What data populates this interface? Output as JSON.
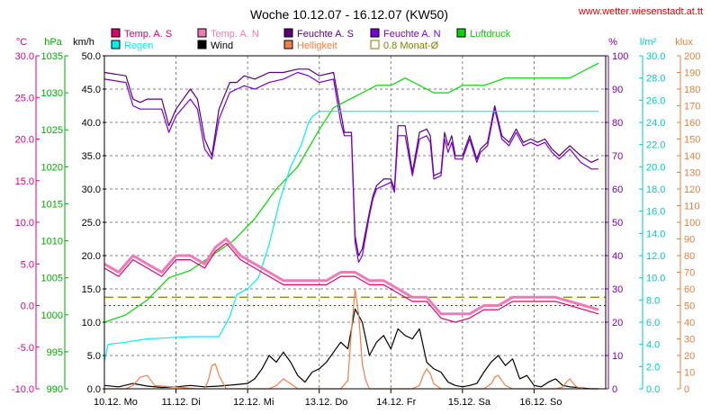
{
  "chart_data": {
    "type": "line",
    "title": "Woche 10.12.07 - 16.12.07 (KW50)",
    "source_url": "www.wetter.wiesenstadt.at.tt",
    "axes": {
      "celsius": {
        "unit": "°C",
        "color": "#e0007a",
        "range": [
          -10,
          30
        ],
        "ticks": [
          "30.0",
          "25.0",
          "20.0",
          "15.0",
          "10.0",
          "5.0",
          "0.0",
          "-5.0",
          "-10.0"
        ]
      },
      "hpa": {
        "unit": "hPa",
        "color": "#00aa00",
        "range": [
          990,
          1035
        ],
        "ticks": [
          "1035",
          "1030",
          "1025",
          "1020",
          "1015",
          "1010",
          "1005",
          "1000",
          "995",
          "990"
        ]
      },
      "kmh": {
        "unit": "km/h",
        "color": "#000000",
        "range": [
          0,
          50
        ],
        "ticks": [
          "50.0",
          "45.0",
          "40.0",
          "35.0",
          "30.0",
          "25.0",
          "20.0",
          "15.0",
          "10.0",
          "5.0",
          "0.0"
        ]
      },
      "percent": {
        "unit": "%",
        "color": "#7a00a0",
        "range": [
          0,
          100
        ],
        "ticks": [
          "100",
          "90",
          "80",
          "70",
          "60",
          "50",
          "40",
          "30",
          "20",
          "10",
          "0"
        ]
      },
      "lm2": {
        "unit": "l/m²",
        "color": "#00c8c8",
        "range": [
          0,
          30
        ],
        "ticks": [
          "30.0",
          "28.0",
          "26.0",
          "24.0",
          "22.0",
          "20.0",
          "18.0",
          "16.0",
          "14.0",
          "12.0",
          "10.0",
          "8.0",
          "6.0",
          "4.0",
          "2.0",
          "0.0"
        ]
      },
      "klux": {
        "unit": "klux",
        "color": "#e08040",
        "range": [
          0,
          200
        ],
        "ticks": [
          "200",
          "190",
          "180",
          "170",
          "160",
          "150",
          "140",
          "130",
          "120",
          "110",
          "100",
          "90",
          "80",
          "70",
          "60",
          "50",
          "40",
          "30",
          "20",
          "10",
          "0"
        ]
      }
    },
    "x_labels": [
      "10.12. Mo",
      "11.12. Di",
      "12.12. Mi",
      "13.12. Do",
      "14.12. Fr",
      "15.12. Sa",
      "16.12. So"
    ],
    "x_range": [
      0,
      7
    ],
    "grid": true,
    "legend": [
      {
        "name": "Temp. A. S",
        "color": "#e0006a"
      },
      {
        "name": "Temp. A. N",
        "color": "#f07ab8"
      },
      {
        "name": "Feuchte A. S",
        "color": "#5a0078"
      },
      {
        "name": "Feuchte A. N",
        "color": "#7800d8"
      },
      {
        "name": "Luftdruck",
        "color": "#00d800"
      },
      {
        "name": "Regen",
        "color": "#00f0f0"
      },
      {
        "name": "Wind",
        "color": "#000000"
      },
      {
        "name": "Helligkeit",
        "color": "#f08048"
      },
      {
        "name": "0.8 Monat-Ø",
        "color": "#808000"
      }
    ],
    "reference_lines": [
      {
        "name": "0.8 Monat-Ø",
        "axis": "celsius",
        "value": 1.0,
        "color": "#808000",
        "style": "dashed"
      },
      {
        "name": "zero",
        "axis": "celsius",
        "value": 0.0,
        "color": "#e00000",
        "style": "dotted"
      }
    ],
    "series": [
      {
        "name": "Feuchte A. S",
        "axis": "percent",
        "color": "#5a0078",
        "x": [
          0,
          0.3,
          0.4,
          0.5,
          0.6,
          0.8,
          0.9,
          1.0,
          1.2,
          1.3,
          1.4,
          1.5,
          1.6,
          1.75,
          1.85,
          1.95,
          2.1,
          2.2,
          2.3,
          2.5,
          2.7,
          2.85,
          3.0,
          3.2,
          3.3,
          3.35,
          3.45,
          3.5,
          3.55,
          3.6,
          3.7,
          3.75,
          3.8,
          3.9,
          4.0,
          4.05,
          4.1,
          4.2,
          4.3,
          4.4,
          4.5,
          4.55,
          4.6,
          4.7,
          4.75,
          4.8,
          4.85,
          4.9,
          5.0,
          5.1,
          5.2,
          5.25,
          5.35,
          5.45,
          5.55,
          5.65,
          5.75,
          5.85,
          5.95,
          6.05,
          6.15,
          6.25,
          6.35,
          6.5,
          6.65,
          6.8,
          6.9
        ],
        "y": [
          95,
          94,
          87,
          86,
          87,
          87,
          79,
          84,
          90,
          87,
          75,
          70,
          84,
          92,
          92,
          94,
          93,
          94,
          95,
          95,
          96,
          96,
          94,
          95,
          83,
          77,
          77,
          46,
          40,
          42,
          53,
          58,
          61,
          63,
          63,
          60,
          79,
          79,
          65,
          77,
          78,
          76,
          64,
          65,
          77,
          73,
          76,
          70,
          70,
          76,
          69,
          72,
          74,
          85,
          76,
          74,
          78,
          74,
          75,
          74,
          75,
          72,
          70,
          73,
          70,
          68,
          69
        ]
      },
      {
        "name": "Feuchte A. N",
        "axis": "percent",
        "color": "#7800d8",
        "x": [
          0,
          0.3,
          0.4,
          0.5,
          0.6,
          0.8,
          0.9,
          1.0,
          1.2,
          1.3,
          1.4,
          1.5,
          1.6,
          1.75,
          1.85,
          1.95,
          2.1,
          2.2,
          2.3,
          2.5,
          2.7,
          2.85,
          3.0,
          3.2,
          3.3,
          3.35,
          3.45,
          3.5,
          3.55,
          3.6,
          3.7,
          3.75,
          3.8,
          3.9,
          4.0,
          4.05,
          4.1,
          4.2,
          4.3,
          4.4,
          4.5,
          4.55,
          4.6,
          4.7,
          4.75,
          4.8,
          4.85,
          4.9,
          5.0,
          5.1,
          5.2,
          5.25,
          5.35,
          5.45,
          5.55,
          5.65,
          5.75,
          5.85,
          5.95,
          6.05,
          6.15,
          6.25,
          6.35,
          6.5,
          6.65,
          6.8,
          6.9
        ],
        "y": [
          93,
          92,
          85,
          84,
          84,
          84,
          77,
          82,
          87,
          84,
          72,
          69,
          81,
          89,
          90,
          91,
          90,
          91,
          92,
          93,
          95,
          94,
          92,
          93,
          80,
          76,
          76,
          44,
          38,
          40,
          52,
          57,
          60,
          61,
          62,
          59,
          76,
          76,
          64,
          75,
          76,
          74,
          63,
          64,
          75,
          71,
          74,
          69,
          69,
          75,
          68,
          71,
          73,
          84,
          75,
          73,
          77,
          73,
          74,
          73,
          74,
          71,
          69,
          72,
          68,
          66,
          66
        ]
      },
      {
        "name": "Luftdruck",
        "axis": "hpa",
        "color": "#00d800",
        "x": [
          0,
          0.3,
          0.6,
          0.9,
          1.2,
          1.5,
          1.8,
          2.1,
          2.4,
          2.7,
          3.0,
          3.2,
          3.4,
          3.6,
          3.8,
          4.0,
          4.2,
          4.4,
          4.6,
          4.8,
          5.0,
          5.3,
          5.6,
          5.9,
          6.2,
          6.5,
          6.7,
          6.9
        ],
        "y": [
          999,
          1000,
          1002,
          1005,
          1006,
          1008,
          1010,
          1013,
          1017,
          1020,
          1025,
          1028,
          1029,
          1030,
          1031,
          1031,
          1032,
          1031,
          1030,
          1030,
          1031,
          1031,
          1032,
          1032,
          1032,
          1032,
          1033,
          1034
        ]
      },
      {
        "name": "Regen",
        "axis": "lm2",
        "color": "#00f0f0",
        "x": [
          0,
          0.05,
          0.3,
          0.6,
          0.9,
          1.2,
          1.5,
          1.6,
          1.75,
          1.85,
          2.0,
          2.15,
          2.3,
          2.45,
          2.6,
          2.75,
          2.85,
          2.9,
          3.0,
          3.1,
          3.2,
          3.5,
          4.0,
          4.5,
          5.0,
          5.5,
          6.0,
          6.5,
          6.9
        ],
        "y": [
          2.5,
          4.0,
          4.2,
          4.5,
          4.6,
          4.7,
          4.7,
          4.7,
          6.5,
          8.5,
          9.0,
          10.0,
          13.0,
          17.0,
          20.0,
          22.0,
          24.0,
          24.5,
          25.0,
          25.0,
          25.0,
          25.0,
          25.0,
          25.0,
          25.0,
          25.0,
          25.0,
          25.0,
          25.0
        ]
      },
      {
        "name": "Temp. A. N",
        "axis": "celsius",
        "color": "#f07ab8",
        "x": [
          0,
          0.2,
          0.4,
          0.6,
          0.8,
          1.0,
          1.2,
          1.4,
          1.55,
          1.7,
          1.9,
          2.1,
          2.3,
          2.5,
          2.7,
          2.9,
          3.1,
          3.3,
          3.5,
          3.7,
          3.9,
          4.1,
          4.3,
          4.5,
          4.7,
          4.9,
          5.1,
          5.3,
          5.5,
          5.7,
          5.9,
          6.1,
          6.3,
          6.5,
          6.7,
          6.9
        ],
        "y": [
          5,
          4,
          6,
          5,
          4,
          6,
          6,
          5,
          7,
          8,
          6,
          5,
          4,
          3,
          3,
          3,
          3,
          4,
          4,
          3,
          3,
          2,
          1,
          1,
          -1,
          -1,
          -1,
          0,
          0,
          1,
          1,
          1,
          1,
          0.5,
          0,
          -0.5
        ]
      },
      {
        "name": "Temp. A. S",
        "axis": "celsius",
        "color": "#e0006a",
        "x": [
          0,
          0.2,
          0.4,
          0.6,
          0.8,
          1.0,
          1.2,
          1.4,
          1.55,
          1.7,
          1.9,
          2.1,
          2.3,
          2.5,
          2.7,
          2.9,
          3.1,
          3.3,
          3.5,
          3.7,
          3.9,
          4.1,
          4.3,
          4.5,
          4.7,
          4.9,
          5.1,
          5.3,
          5.5,
          5.7,
          5.9,
          6.1,
          6.3,
          6.5,
          6.7,
          6.9
        ],
        "y": [
          4.5,
          3.5,
          5.5,
          4.5,
          3.5,
          5.5,
          5.5,
          4.5,
          6.5,
          7.5,
          5.5,
          4.5,
          3.5,
          2.5,
          2.5,
          2.5,
          2.5,
          3.5,
          3.5,
          2.5,
          2.5,
          1.5,
          0.5,
          0.5,
          -1.5,
          -2,
          -1.5,
          -0.5,
          -0.5,
          0.5,
          0.5,
          0.5,
          0.5,
          0,
          -0.5,
          -1
        ]
      },
      {
        "name": "Wind",
        "axis": "kmh",
        "color": "#000000",
        "x": [
          0,
          0.2,
          0.4,
          0.6,
          0.8,
          1.0,
          1.2,
          1.4,
          1.6,
          1.8,
          2.0,
          2.1,
          2.2,
          2.3,
          2.4,
          2.5,
          2.6,
          2.7,
          2.8,
          2.9,
          3.0,
          3.1,
          3.2,
          3.3,
          3.4,
          3.5,
          3.6,
          3.7,
          3.8,
          3.9,
          4.0,
          4.1,
          4.2,
          4.3,
          4.4,
          4.5,
          4.6,
          4.7,
          4.8,
          4.9,
          5.0,
          5.1,
          5.2,
          5.3,
          5.4,
          5.5,
          5.6,
          5.7,
          5.8,
          5.9,
          6.0,
          6.1,
          6.2,
          6.3,
          6.4,
          6.5,
          6.6,
          6.7,
          6.8,
          6.9
        ],
        "y": [
          0.5,
          0.3,
          0.8,
          0.4,
          0.2,
          0.3,
          0.5,
          0.3,
          0.4,
          0.6,
          0.8,
          1.5,
          3.0,
          5.0,
          4.0,
          5.5,
          4.0,
          2.0,
          1.0,
          2.5,
          3.0,
          4.0,
          5.5,
          7.0,
          6.0,
          12.0,
          10.0,
          5.0,
          7.0,
          8.0,
          6.0,
          9.0,
          8.0,
          7.5,
          9.0,
          4.0,
          3.0,
          2.5,
          1.0,
          0.5,
          0.3,
          0.5,
          0.8,
          2.5,
          4.0,
          5.0,
          3.5,
          4.5,
          1.5,
          2.0,
          0.5,
          0.3,
          1.0,
          1.5,
          0.5,
          0.3,
          0.2,
          0.1,
          0.0,
          0.0
        ]
      },
      {
        "name": "Helligkeit",
        "axis": "klux",
        "color": "#f08048",
        "x": [
          0,
          0.3,
          0.4,
          0.5,
          0.6,
          0.7,
          1.3,
          1.4,
          1.45,
          1.5,
          1.55,
          1.6,
          1.7,
          2.3,
          2.4,
          2.5,
          2.6,
          2.7,
          3.3,
          3.4,
          3.45,
          3.5,
          3.55,
          3.6,
          3.65,
          3.7,
          4.3,
          4.4,
          4.45,
          4.5,
          4.55,
          4.6,
          4.7,
          5.3,
          5.4,
          5.45,
          5.5,
          5.55,
          5.6,
          5.7,
          6.3,
          6.4,
          6.45,
          6.5,
          6.55,
          6.6,
          6.7,
          6.9
        ],
        "y": [
          0,
          0,
          2,
          7,
          8,
          2,
          0,
          0,
          5,
          14,
          15,
          8,
          0,
          0,
          2,
          6,
          3,
          0,
          0,
          5,
          35,
          60,
          45,
          15,
          5,
          0,
          0,
          2,
          8,
          12,
          9,
          3,
          0,
          0,
          3,
          7,
          8,
          5,
          2,
          0,
          0,
          1,
          4,
          6,
          3,
          1,
          0,
          0
        ]
      }
    ]
  }
}
